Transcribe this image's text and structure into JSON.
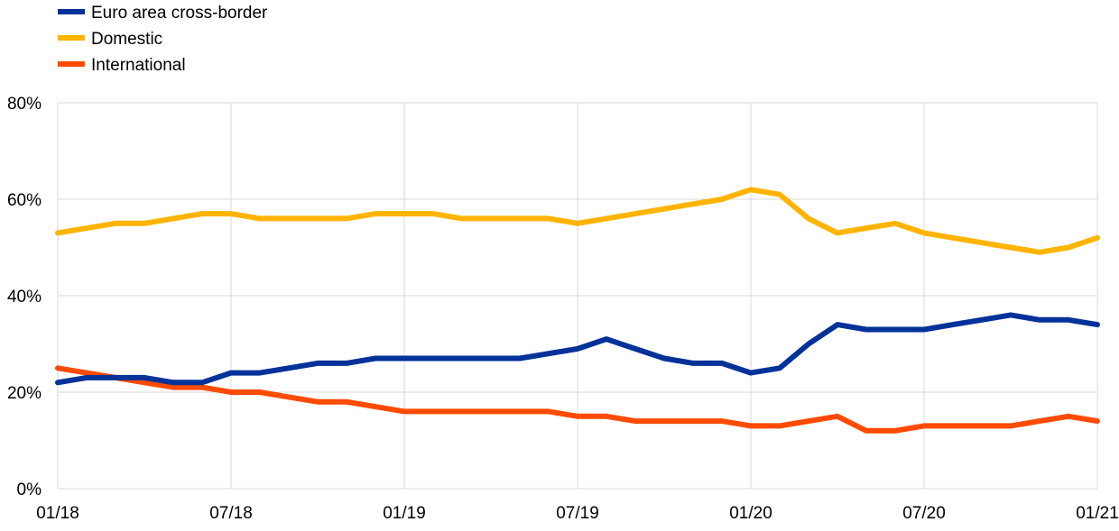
{
  "chart_data": {
    "type": "line",
    "title": "",
    "xlabel": "",
    "ylabel": "",
    "ylim": [
      0,
      80
    ],
    "y_ticks": [
      "0%",
      "20%",
      "40%",
      "60%",
      "80%"
    ],
    "x_ticks": [
      "01/18",
      "07/18",
      "01/19",
      "07/19",
      "01/20",
      "07/20",
      "01/21"
    ],
    "grid": true,
    "legend_position": "top-left",
    "x": [
      "2018-01",
      "2018-02",
      "2018-03",
      "2018-04",
      "2018-05",
      "2018-06",
      "2018-07",
      "2018-08",
      "2018-09",
      "2018-10",
      "2018-11",
      "2018-12",
      "2019-01",
      "2019-02",
      "2019-03",
      "2019-04",
      "2019-05",
      "2019-06",
      "2019-07",
      "2019-08",
      "2019-09",
      "2019-10",
      "2019-11",
      "2019-12",
      "2020-01",
      "2020-02",
      "2020-03",
      "2020-04",
      "2020-05",
      "2020-06",
      "2020-07",
      "2020-08",
      "2020-09",
      "2020-10",
      "2020-11",
      "2020-12",
      "2021-01"
    ],
    "series": [
      {
        "name": "Euro area cross-border",
        "color": "#003299",
        "values": [
          22,
          23,
          23,
          23,
          22,
          22,
          24,
          24,
          25,
          26,
          26,
          27,
          27,
          27,
          27,
          27,
          27,
          28,
          29,
          31,
          29,
          27,
          26,
          26,
          24,
          25,
          30,
          34,
          33,
          33,
          33,
          34,
          35,
          36,
          35,
          35,
          34
        ]
      },
      {
        "name": "Domestic",
        "color": "#FFB400",
        "values": [
          53,
          54,
          55,
          55,
          56,
          57,
          57,
          56,
          56,
          56,
          56,
          57,
          57,
          57,
          56,
          56,
          56,
          56,
          55,
          56,
          57,
          58,
          59,
          60,
          62,
          61,
          56,
          53,
          54,
          55,
          53,
          52,
          51,
          50,
          49,
          50,
          52
        ]
      },
      {
        "name": "International",
        "color": "#FF4B00",
        "values": [
          25,
          24,
          23,
          22,
          21,
          21,
          20,
          20,
          19,
          18,
          18,
          17,
          16,
          16,
          16,
          16,
          16,
          16,
          15,
          15,
          14,
          14,
          14,
          14,
          13,
          13,
          14,
          15,
          12,
          12,
          13,
          13,
          13,
          13,
          14,
          15,
          14
        ]
      }
    ]
  }
}
